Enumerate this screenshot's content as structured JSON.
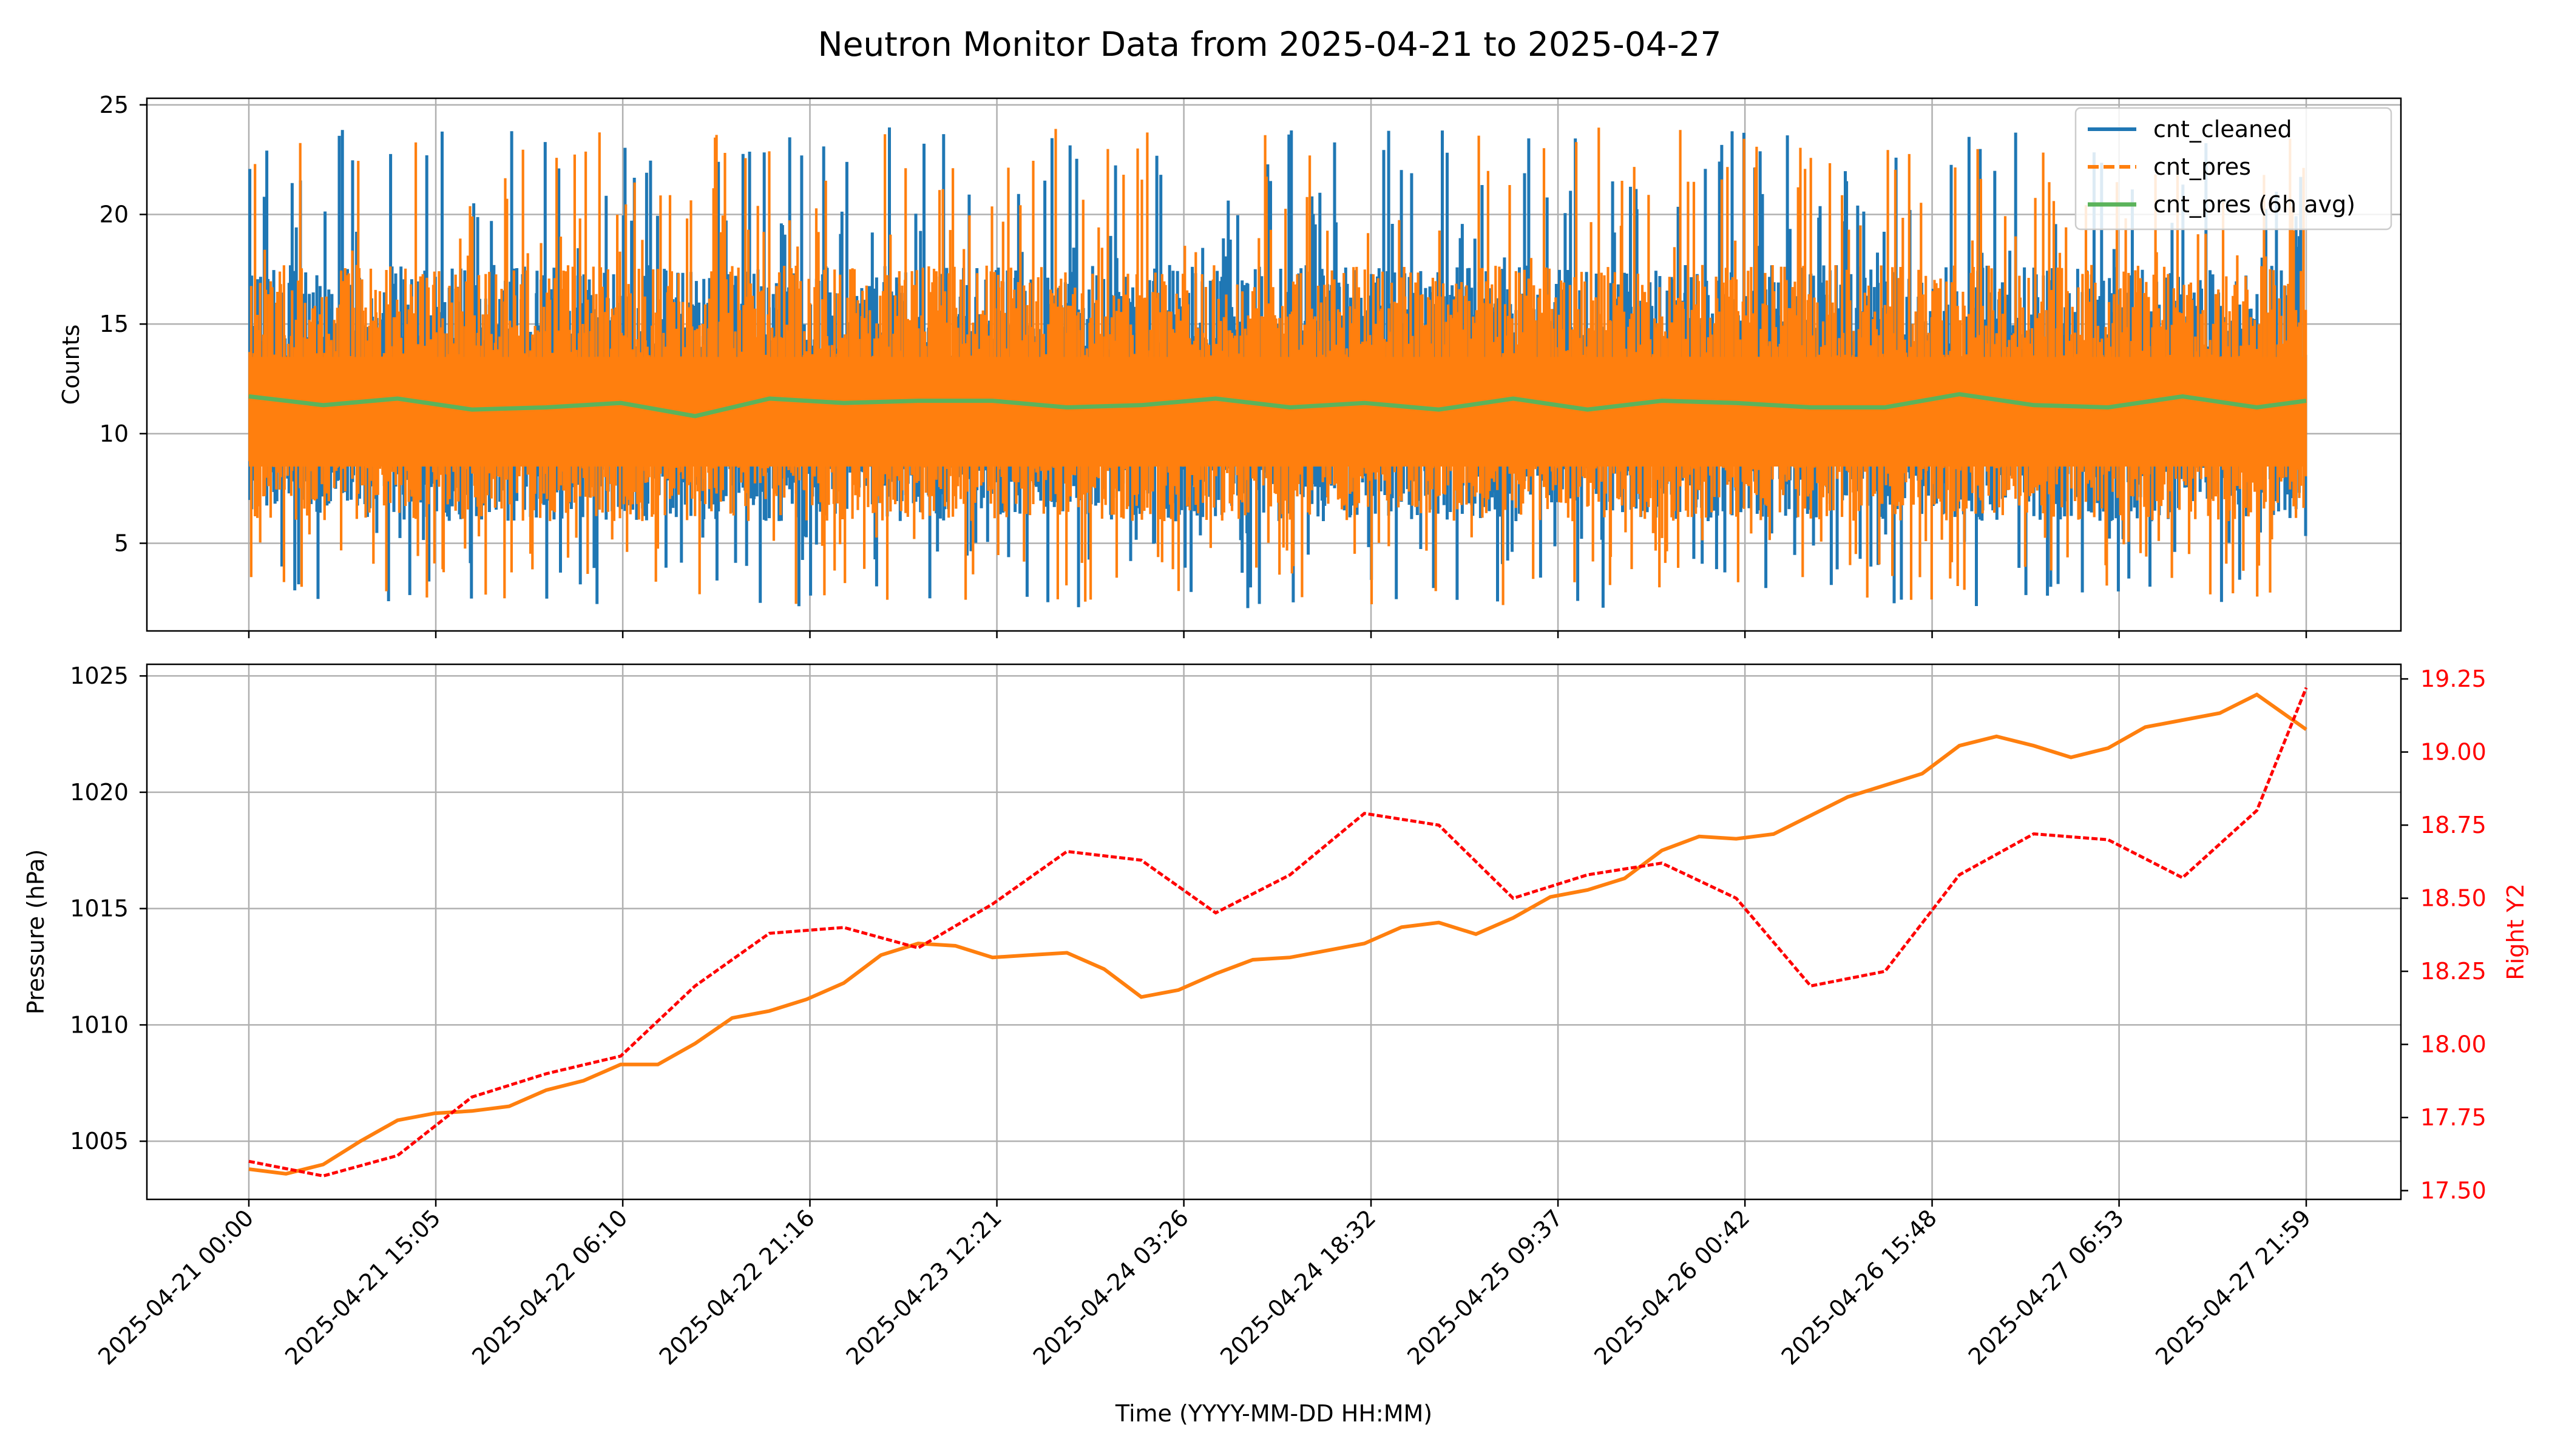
{
  "title": "Neutron Monitor Data from 2025-04-21 to 2025-04-27",
  "colors": {
    "cnt_cleaned": "#1f77b4",
    "cnt_pres": "#ff7f0e",
    "avg": "#5bb35b",
    "pressure": "#ff7f0e",
    "right_y2": "#ff0000",
    "grid": "#b0b0b0"
  },
  "chart_data": [
    {
      "type": "line",
      "panel": "top",
      "ylabel": "Counts",
      "ylim": [
        1,
        25.3
      ],
      "yticks": [
        5,
        10,
        15,
        20,
        25
      ],
      "grid": true,
      "legend_placement": "top-right",
      "x_range": [
        "2025-04-21 00:00",
        "2025-04-27 21:59"
      ],
      "series": [
        {
          "name": "cnt_cleaned",
          "style": "solid",
          "summary": "high-frequency count series fluctuating roughly between 2 and 24, centered near 11",
          "band_min_approx": 2,
          "band_max_approx": 24
        },
        {
          "name": "cnt_pres",
          "style": "dashed",
          "summary": "pressure-corrected counts, nearly overlapping cnt_cleaned, ranging roughly 2 to 24",
          "band_min_approx": 2,
          "band_max_approx": 24
        },
        {
          "name": "cnt_pres (6h avg)",
          "style": "solid",
          "x": [
            "2025-04-21 00:00",
            "2025-04-21 06:00",
            "2025-04-21 12:00",
            "2025-04-21 18:00",
            "2025-04-22 00:00",
            "2025-04-22 06:00",
            "2025-04-22 12:00",
            "2025-04-22 18:00",
            "2025-04-23 00:00",
            "2025-04-23 06:00",
            "2025-04-23 12:00",
            "2025-04-23 18:00",
            "2025-04-24 00:00",
            "2025-04-24 06:00",
            "2025-04-24 12:00",
            "2025-04-24 18:00",
            "2025-04-25 00:00",
            "2025-04-25 06:00",
            "2025-04-25 12:00",
            "2025-04-25 18:00",
            "2025-04-26 00:00",
            "2025-04-26 06:00",
            "2025-04-26 12:00",
            "2025-04-26 18:00",
            "2025-04-27 00:00",
            "2025-04-27 06:00",
            "2025-04-27 12:00",
            "2025-04-27 18:00",
            "2025-04-27 21:59"
          ],
          "values": [
            11.7,
            11.3,
            11.6,
            11.1,
            11.2,
            11.4,
            10.8,
            11.6,
            11.4,
            11.5,
            11.5,
            11.2,
            11.3,
            11.6,
            11.2,
            11.4,
            11.1,
            11.6,
            11.1,
            11.5,
            11.4,
            11.2,
            11.2,
            11.8,
            11.3,
            11.2,
            11.7,
            11.2,
            11.5
          ]
        }
      ]
    },
    {
      "type": "line",
      "panel": "bottom",
      "xlabel": "Time (YYYY-MM-DD HH:MM)",
      "ylabel": "Pressure (hPa)",
      "ylim": [
        1002.5,
        1025.5
      ],
      "yticks": [
        1005,
        1010,
        1015,
        1020,
        1025
      ],
      "y2label": "Right Y2",
      "y2lim": [
        17.47,
        19.3
      ],
      "y2ticks": [
        "17.50",
        "17.75",
        "18.00",
        "18.25",
        "18.50",
        "18.75",
        "19.00",
        "19.25"
      ],
      "grid": true,
      "xticks": [
        "2025-04-21 00:00",
        "2025-04-21 15:05",
        "2025-04-22 06:10",
        "2025-04-22 21:16",
        "2025-04-23 12:21",
        "2025-04-24 03:26",
        "2025-04-24 18:32",
        "2025-04-25 09:37",
        "2025-04-26 00:42",
        "2025-04-26 15:48",
        "2025-04-27 06:53",
        "2025-04-27 21:59"
      ],
      "series": [
        {
          "name": "pressure",
          "axis": "left",
          "style": "solid",
          "x": [
            "2025-04-21 00:00",
            "2025-04-21 03:00",
            "2025-04-21 06:00",
            "2025-04-21 09:00",
            "2025-04-21 12:00",
            "2025-04-21 15:00",
            "2025-04-21 18:00",
            "2025-04-21 21:00",
            "2025-04-22 00:00",
            "2025-04-22 03:00",
            "2025-04-22 06:00",
            "2025-04-22 09:00",
            "2025-04-22 12:00",
            "2025-04-22 15:00",
            "2025-04-22 18:00",
            "2025-04-22 21:00",
            "2025-04-23 00:00",
            "2025-04-23 03:00",
            "2025-04-23 06:00",
            "2025-04-23 09:00",
            "2025-04-23 12:00",
            "2025-04-23 15:00",
            "2025-04-23 18:00",
            "2025-04-23 21:00",
            "2025-04-24 00:00",
            "2025-04-24 03:00",
            "2025-04-24 06:00",
            "2025-04-24 09:00",
            "2025-04-24 12:00",
            "2025-04-24 15:00",
            "2025-04-24 18:00",
            "2025-04-24 21:00",
            "2025-04-25 00:00",
            "2025-04-25 03:00",
            "2025-04-25 06:00",
            "2025-04-25 09:00",
            "2025-04-25 12:00",
            "2025-04-25 15:00",
            "2025-04-25 18:00",
            "2025-04-25 21:00",
            "2025-04-26 00:00",
            "2025-04-26 03:00",
            "2025-04-26 06:00",
            "2025-04-26 09:00",
            "2025-04-26 12:00",
            "2025-04-26 15:00",
            "2025-04-26 18:00",
            "2025-04-26 21:00",
            "2025-04-27 00:00",
            "2025-04-27 03:00",
            "2025-04-27 06:00",
            "2025-04-27 09:00",
            "2025-04-27 12:00",
            "2025-04-27 15:00",
            "2025-04-27 18:00",
            "2025-04-27 21:59"
          ],
          "values": [
            1003.8,
            1003.6,
            1004.0,
            1005.0,
            1005.9,
            1006.2,
            1006.3,
            1006.5,
            1007.2,
            1007.6,
            1008.3,
            1008.3,
            1009.2,
            1010.3,
            1010.6,
            1011.1,
            1011.8,
            1013.0,
            1013.5,
            1013.4,
            1012.9,
            1013.0,
            1013.1,
            1012.4,
            1011.2,
            1011.5,
            1012.2,
            1012.8,
            1012.9,
            1013.2,
            1013.5,
            1014.2,
            1014.4,
            1013.9,
            1014.6,
            1015.5,
            1015.8,
            1016.3,
            1017.5,
            1018.1,
            1018.0,
            1018.2,
            1019.0,
            1019.8,
            1020.3,
            1020.8,
            1022.0,
            1022.4,
            1022.0,
            1021.5,
            1021.9,
            1022.8,
            1023.1,
            1023.4,
            1024.2,
            1022.7
          ]
        },
        {
          "name": "Right Y2",
          "axis": "right",
          "style": "dashed",
          "x": [
            "2025-04-21 00:00",
            "2025-04-21 06:00",
            "2025-04-21 12:00",
            "2025-04-21 18:00",
            "2025-04-22 00:00",
            "2025-04-22 06:00",
            "2025-04-22 12:00",
            "2025-04-22 18:00",
            "2025-04-23 00:00",
            "2025-04-23 06:00",
            "2025-04-23 12:00",
            "2025-04-23 18:00",
            "2025-04-24 00:00",
            "2025-04-24 06:00",
            "2025-04-24 12:00",
            "2025-04-24 18:00",
            "2025-04-25 00:00",
            "2025-04-25 06:00",
            "2025-04-25 12:00",
            "2025-04-25 18:00",
            "2025-04-26 00:00",
            "2025-04-26 06:00",
            "2025-04-26 12:00",
            "2025-04-26 18:00",
            "2025-04-27 00:00",
            "2025-04-27 06:00",
            "2025-04-27 12:00",
            "2025-04-27 18:00",
            "2025-04-27 21:59"
          ],
          "values": [
            17.6,
            17.55,
            17.62,
            17.82,
            17.9,
            17.96,
            18.2,
            18.38,
            18.4,
            18.33,
            18.48,
            18.66,
            18.63,
            18.45,
            18.58,
            18.79,
            18.75,
            18.5,
            18.58,
            18.62,
            18.5,
            18.2,
            18.25,
            18.58,
            18.72,
            18.7,
            18.57,
            18.8,
            19.22
          ]
        }
      ]
    }
  ]
}
